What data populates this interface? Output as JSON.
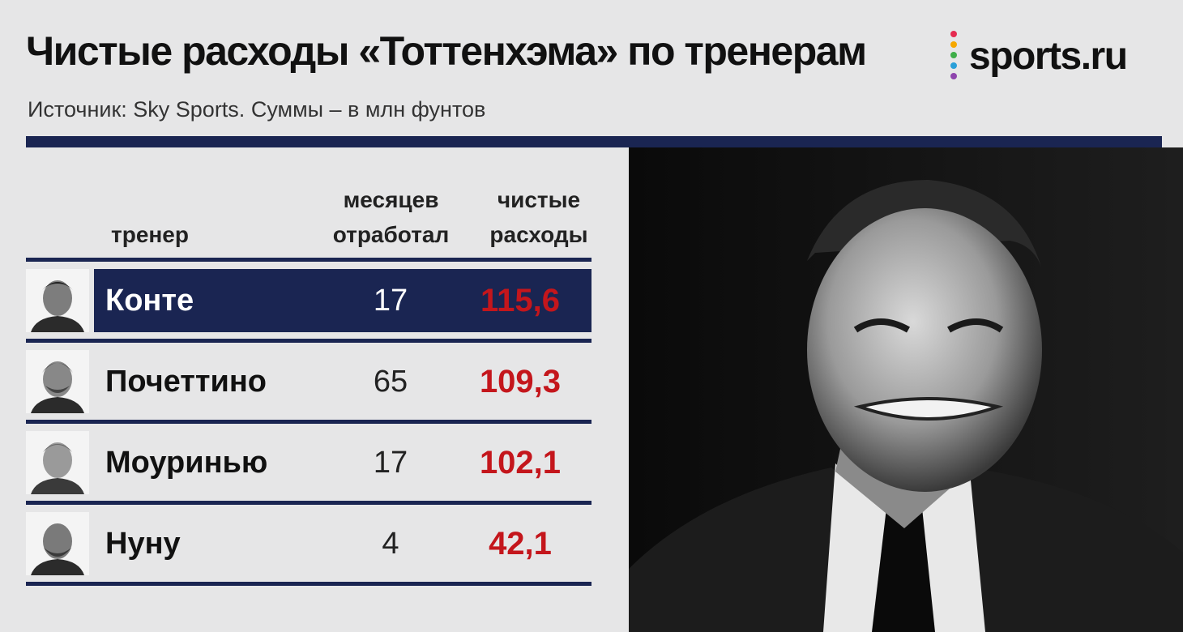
{
  "header": {
    "title": "Чистые расходы «Тоттенхэма» по тренерам",
    "subtitle": "Источник: Sky Sports. Суммы – в млн фунтов"
  },
  "logo": {
    "text": "sports.ru",
    "dot_colors": [
      "#e52b50",
      "#f6a800",
      "#3fae49",
      "#2a9fd8",
      "#8e44ad"
    ]
  },
  "colors": {
    "navy": "#1a2552",
    "accent_red": "#c4161c",
    "background": "#e6e6e7"
  },
  "table": {
    "headers": {
      "coach": "тренер",
      "months_line1": "месяцев",
      "months_line2": "отработал",
      "spend_line1": "чистые",
      "spend_line2": "расходы"
    },
    "rows": [
      {
        "name": "Конте",
        "months": "17",
        "spend": "115,6",
        "highlight": true
      },
      {
        "name": "Почеттино",
        "months": "65",
        "spend": "109,3",
        "highlight": false
      },
      {
        "name": "Моуринью",
        "months": "17",
        "spend": "102,1",
        "highlight": false
      },
      {
        "name": "Нуну",
        "months": "4",
        "spend": "42,1",
        "highlight": false
      }
    ]
  }
}
